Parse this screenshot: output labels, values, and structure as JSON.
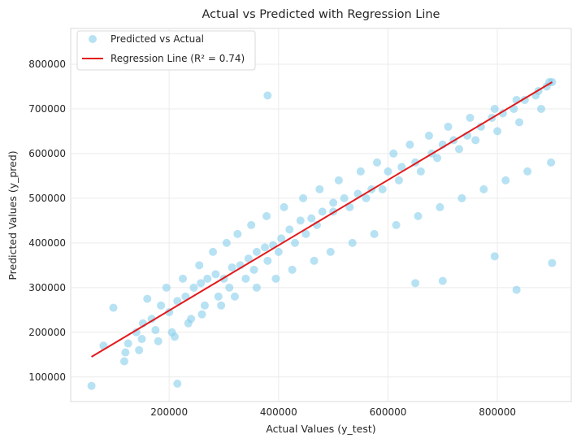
{
  "chart_data": {
    "type": "scatter",
    "title": "Actual vs Predicted with Regression Line",
    "xlabel": "Actual Values (y_test)",
    "ylabel": "Predicted Values (y_pred)",
    "xlim": [
      20000,
      935000
    ],
    "ylim": [
      45000,
      880000
    ],
    "xticks": [
      200000,
      400000,
      600000,
      800000
    ],
    "yticks": [
      100000,
      200000,
      300000,
      400000,
      500000,
      600000,
      700000,
      800000
    ],
    "grid": true,
    "legend_position": "top-left",
    "series": [
      {
        "name": "Predicted vs Actual",
        "kind": "scatter",
        "color": "#87ceeb",
        "opacity": 0.6,
        "x": [
          58000,
          80000,
          118000,
          98000,
          125000,
          140000,
          152000,
          168000,
          185000,
          200000,
          215000,
          230000,
          245000,
          258000,
          270000,
          285000,
          300000,
          315000,
          330000,
          345000,
          360000,
          375000,
          390000,
          405000,
          420000,
          440000,
          460000,
          480000,
          500000,
          520000,
          545000,
          570000,
          600000,
          625000,
          650000,
          680000,
          700000,
          720000,
          745000,
          770000,
          790000,
          810000,
          830000,
          850000,
          870000,
          890000,
          900000,
          120000,
          150000,
          175000,
          210000,
          240000,
          265000,
          290000,
          310000,
          340000,
          355000,
          380000,
          400000,
          430000,
          450000,
          470000,
          500000,
          530000,
          560000,
          590000,
          620000,
          660000,
          690000,
          730000,
          760000,
          800000,
          840000,
          880000,
          160000,
          195000,
          225000,
          255000,
          280000,
          305000,
          325000,
          350000,
          378000,
          410000,
          445000,
          475000,
          510000,
          550000,
          580000,
          610000,
          640000,
          675000,
          710000,
          750000,
          795000,
          835000,
          875000,
          895000,
          145000,
          180000,
          205000,
          235000,
          260000,
          295000,
          320000,
          360000,
          395000,
          425000,
          465000,
          495000,
          535000,
          575000,
          615000,
          655000,
          695000,
          735000,
          775000,
          815000,
          855000,
          898000,
          380000,
          835000,
          795000,
          900000,
          215000,
          650000,
          700000
        ],
        "y": [
          80000,
          170000,
          135000,
          255000,
          175000,
          200000,
          220000,
          230000,
          260000,
          245000,
          270000,
          280000,
          300000,
          310000,
          320000,
          330000,
          320000,
          345000,
          350000,
          365000,
          380000,
          390000,
          395000,
          410000,
          430000,
          450000,
          455000,
          470000,
          490000,
          500000,
          510000,
          520000,
          560000,
          570000,
          580000,
          600000,
          620000,
          630000,
          640000,
          660000,
          680000,
          690000,
          700000,
          720000,
          730000,
          750000,
          760000,
          155000,
          185000,
          205000,
          190000,
          230000,
          260000,
          280000,
          300000,
          320000,
          340000,
          360000,
          380000,
          400000,
          420000,
          440000,
          470000,
          480000,
          500000,
          520000,
          540000,
          560000,
          590000,
          610000,
          630000,
          650000,
          670000,
          700000,
          275000,
          300000,
          320000,
          350000,
          380000,
          400000,
          420000,
          440000,
          460000,
          480000,
          500000,
          520000,
          540000,
          560000,
          580000,
          600000,
          620000,
          640000,
          660000,
          680000,
          700000,
          720000,
          740000,
          760000,
          160000,
          180000,
          200000,
          220000,
          240000,
          260000,
          280000,
          300000,
          320000,
          340000,
          360000,
          380000,
          400000,
          420000,
          440000,
          460000,
          480000,
          500000,
          520000,
          540000,
          560000,
          580000,
          730000,
          295000,
          370000,
          355000,
          85000,
          310000,
          315000
        ]
      },
      {
        "name": "Regression Line (R² = 0.74)",
        "kind": "line",
        "color": "#e31a1c",
        "x": [
          58000,
          900000
        ],
        "y": [
          145000,
          760000
        ]
      }
    ]
  }
}
